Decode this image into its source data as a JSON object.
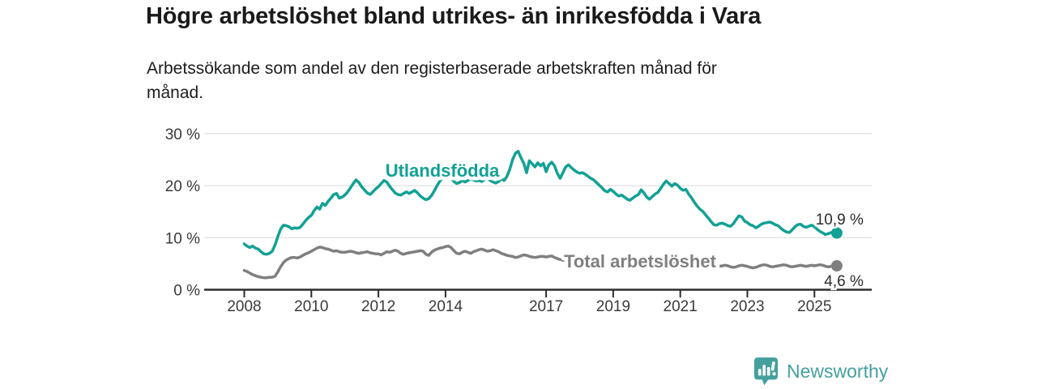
{
  "chart_data": {
    "type": "line",
    "title": "Högre arbetslöshet bland utrikes- än inrikesfödda i Vara",
    "subtitle": "Arbetssökande som andel av den registerbaserade arbetskraften månad för\nmånad.",
    "x_start": "2008-01",
    "x_end": "2025-09",
    "x_interval": "monthly",
    "x_tick_years": [
      2008,
      2010,
      2012,
      2014,
      2017,
      2019,
      2021,
      2023,
      2025
    ],
    "x_tick_labels": [
      "2008",
      "2010",
      "2012",
      "2014",
      "2017",
      "2019",
      "2021",
      "2023",
      "2025"
    ],
    "y_ticks": [
      0,
      10,
      20,
      30
    ],
    "y_tick_labels": [
      "0 %",
      "10 %",
      "20 %",
      "30 %"
    ],
    "ylim": [
      0,
      31
    ],
    "grid": "horizontal-only",
    "legend": "inline-labels",
    "series": [
      {
        "name": "Utlandsfödda",
        "color": "#12a195",
        "end_value": 10.9,
        "end_label": "10,9 %",
        "end_label_position": "above",
        "values": [
          8.8,
          8.4,
          8.1,
          8.4,
          8.0,
          7.8,
          7.3,
          6.9,
          6.8,
          7.0,
          7.4,
          8.6,
          10.2,
          11.6,
          12.4,
          12.3,
          12.1,
          11.7,
          11.9,
          11.8,
          12.0,
          12.6,
          13.3,
          13.9,
          14.3,
          15.2,
          15.9,
          15.5,
          16.6,
          16.2,
          17.0,
          17.6,
          18.3,
          18.5,
          17.6,
          17.8,
          18.2,
          18.8,
          19.6,
          20.4,
          21.1,
          20.6,
          19.8,
          19.2,
          18.6,
          18.3,
          18.8,
          19.4,
          19.8,
          20.4,
          21.0,
          20.7,
          19.9,
          19.2,
          18.6,
          18.3,
          18.2,
          18.5,
          18.8,
          18.5,
          18.8,
          19.1,
          18.6,
          18.0,
          17.6,
          17.3,
          17.5,
          18.1,
          19.0,
          20.0,
          20.9,
          21.5,
          21.8,
          22.0,
          21.5,
          20.8,
          20.4,
          20.6,
          21.0,
          20.7,
          21.0,
          21.3,
          21.1,
          20.9,
          21.0,
          20.8,
          21.2,
          21.4,
          21.0,
          20.7,
          20.5,
          20.8,
          21.3,
          21.0,
          21.8,
          23.2,
          25.0,
          26.2,
          26.6,
          25.4,
          24.3,
          22.5,
          24.8,
          24.2,
          23.6,
          24.4,
          23.8,
          24.3,
          22.7,
          24.0,
          24.5,
          23.8,
          22.4,
          21.4,
          22.5,
          23.6,
          24.0,
          23.5,
          23.0,
          22.6,
          22.4,
          22.5,
          22.2,
          21.8,
          21.4,
          21.1,
          20.6,
          20.1,
          19.6,
          19.0,
          18.8,
          19.3,
          18.9,
          18.4,
          18.0,
          18.2,
          17.8,
          17.4,
          17.2,
          17.6,
          18.0,
          18.3,
          19.2,
          18.6,
          17.8,
          17.4,
          17.9,
          18.4,
          18.7,
          19.5,
          20.3,
          20.9,
          20.4,
          19.9,
          20.4,
          20.1,
          19.5,
          19.1,
          19.3,
          18.4,
          17.7,
          16.8,
          16.1,
          15.5,
          15.1,
          14.4,
          13.8,
          13.1,
          12.5,
          12.4,
          12.7,
          12.8,
          12.6,
          12.3,
          12.2,
          12.7,
          13.5,
          14.2,
          14.0,
          13.2,
          12.9,
          12.5,
          12.3,
          11.9,
          12.2,
          12.6,
          12.8,
          12.9,
          13.0,
          12.8,
          12.5,
          12.3,
          11.8,
          11.4,
          11.1,
          11.0,
          11.5,
          12.1,
          12.5,
          12.6,
          12.2,
          12.0,
          12.2,
          12.4,
          12.1,
          11.6,
          11.2,
          10.9,
          10.6,
          10.8,
          11.0,
          10.9,
          10.9
        ]
      },
      {
        "name": "Total arbetslöshet",
        "color": "#7f7f7f",
        "end_value": 4.6,
        "end_label": "4,6 %",
        "end_label_position": "below",
        "values": [
          3.7,
          3.5,
          3.2,
          2.9,
          2.7,
          2.5,
          2.4,
          2.3,
          2.3,
          2.4,
          2.4,
          2.6,
          3.4,
          4.4,
          5.2,
          5.7,
          6.0,
          6.2,
          6.2,
          6.1,
          6.3,
          6.6,
          6.9,
          7.1,
          7.4,
          7.7,
          8.0,
          8.2,
          8.1,
          7.9,
          7.8,
          7.6,
          7.4,
          7.5,
          7.3,
          7.2,
          7.2,
          7.3,
          7.4,
          7.3,
          7.1,
          7.0,
          7.1,
          7.2,
          7.3,
          7.1,
          7.0,
          6.9,
          6.9,
          6.7,
          7.0,
          7.3,
          7.2,
          7.4,
          7.6,
          7.4,
          7.0,
          6.8,
          7.0,
          7.1,
          7.2,
          7.3,
          7.4,
          7.5,
          7.4,
          6.8,
          6.6,
          7.2,
          7.6,
          7.8,
          8.0,
          8.1,
          8.3,
          8.4,
          8.1,
          7.5,
          7.0,
          6.9,
          7.2,
          7.4,
          7.2,
          7.0,
          7.3,
          7.5,
          7.7,
          7.8,
          7.6,
          7.4,
          7.5,
          7.7,
          7.5,
          7.3,
          7.0,
          6.8,
          6.6,
          6.5,
          6.4,
          6.2,
          6.3,
          6.5,
          6.7,
          6.6,
          6.4,
          6.3,
          6.2,
          6.3,
          6.4,
          6.4,
          6.3,
          6.4,
          6.5,
          6.2,
          6.0,
          5.8,
          5.7,
          5.6,
          5.6,
          5.7,
          5.8,
          5.8,
          5.7,
          5.6,
          5.5,
          5.4,
          5.4,
          5.3,
          5.2,
          5.2,
          5.1,
          5.1,
          5.0,
          5.0,
          5.0,
          4.9,
          4.9,
          4.8,
          4.8,
          4.8,
          4.7,
          4.7,
          4.8,
          4.8,
          4.9,
          4.9,
          5.0,
          5.1,
          5.2,
          5.4,
          5.5,
          5.6,
          5.6,
          5.5,
          5.4,
          5.3,
          5.2,
          5.1,
          5.1,
          5.0,
          5.0,
          4.9,
          4.8,
          4.8,
          4.7,
          4.7,
          4.6,
          4.6,
          4.5,
          4.5,
          4.5,
          4.4,
          4.5,
          4.6,
          4.7,
          4.6,
          4.4,
          4.3,
          4.4,
          4.6,
          4.7,
          4.6,
          4.5,
          4.3,
          4.2,
          4.3,
          4.5,
          4.7,
          4.8,
          4.7,
          4.5,
          4.4,
          4.5,
          4.6,
          4.7,
          4.8,
          4.7,
          4.5,
          4.4,
          4.5,
          4.6,
          4.7,
          4.6,
          4.5,
          4.6,
          4.7,
          4.6,
          4.7,
          4.8,
          4.7,
          4.5,
          4.4,
          4.5,
          4.8,
          4.6
        ]
      }
    ]
  },
  "footer": {
    "brand": "Newsworthy"
  },
  "colors": {
    "accent_teal": "#12a195",
    "series_gray": "#7f7f7f",
    "axis": "#2e2e2e",
    "grid": "#d9d9d9",
    "tick_text": "#3a3a3a",
    "end_label_text": "#2b2b2b",
    "title_text": "#1a1a1a",
    "brand_teal": "#44a09d"
  }
}
